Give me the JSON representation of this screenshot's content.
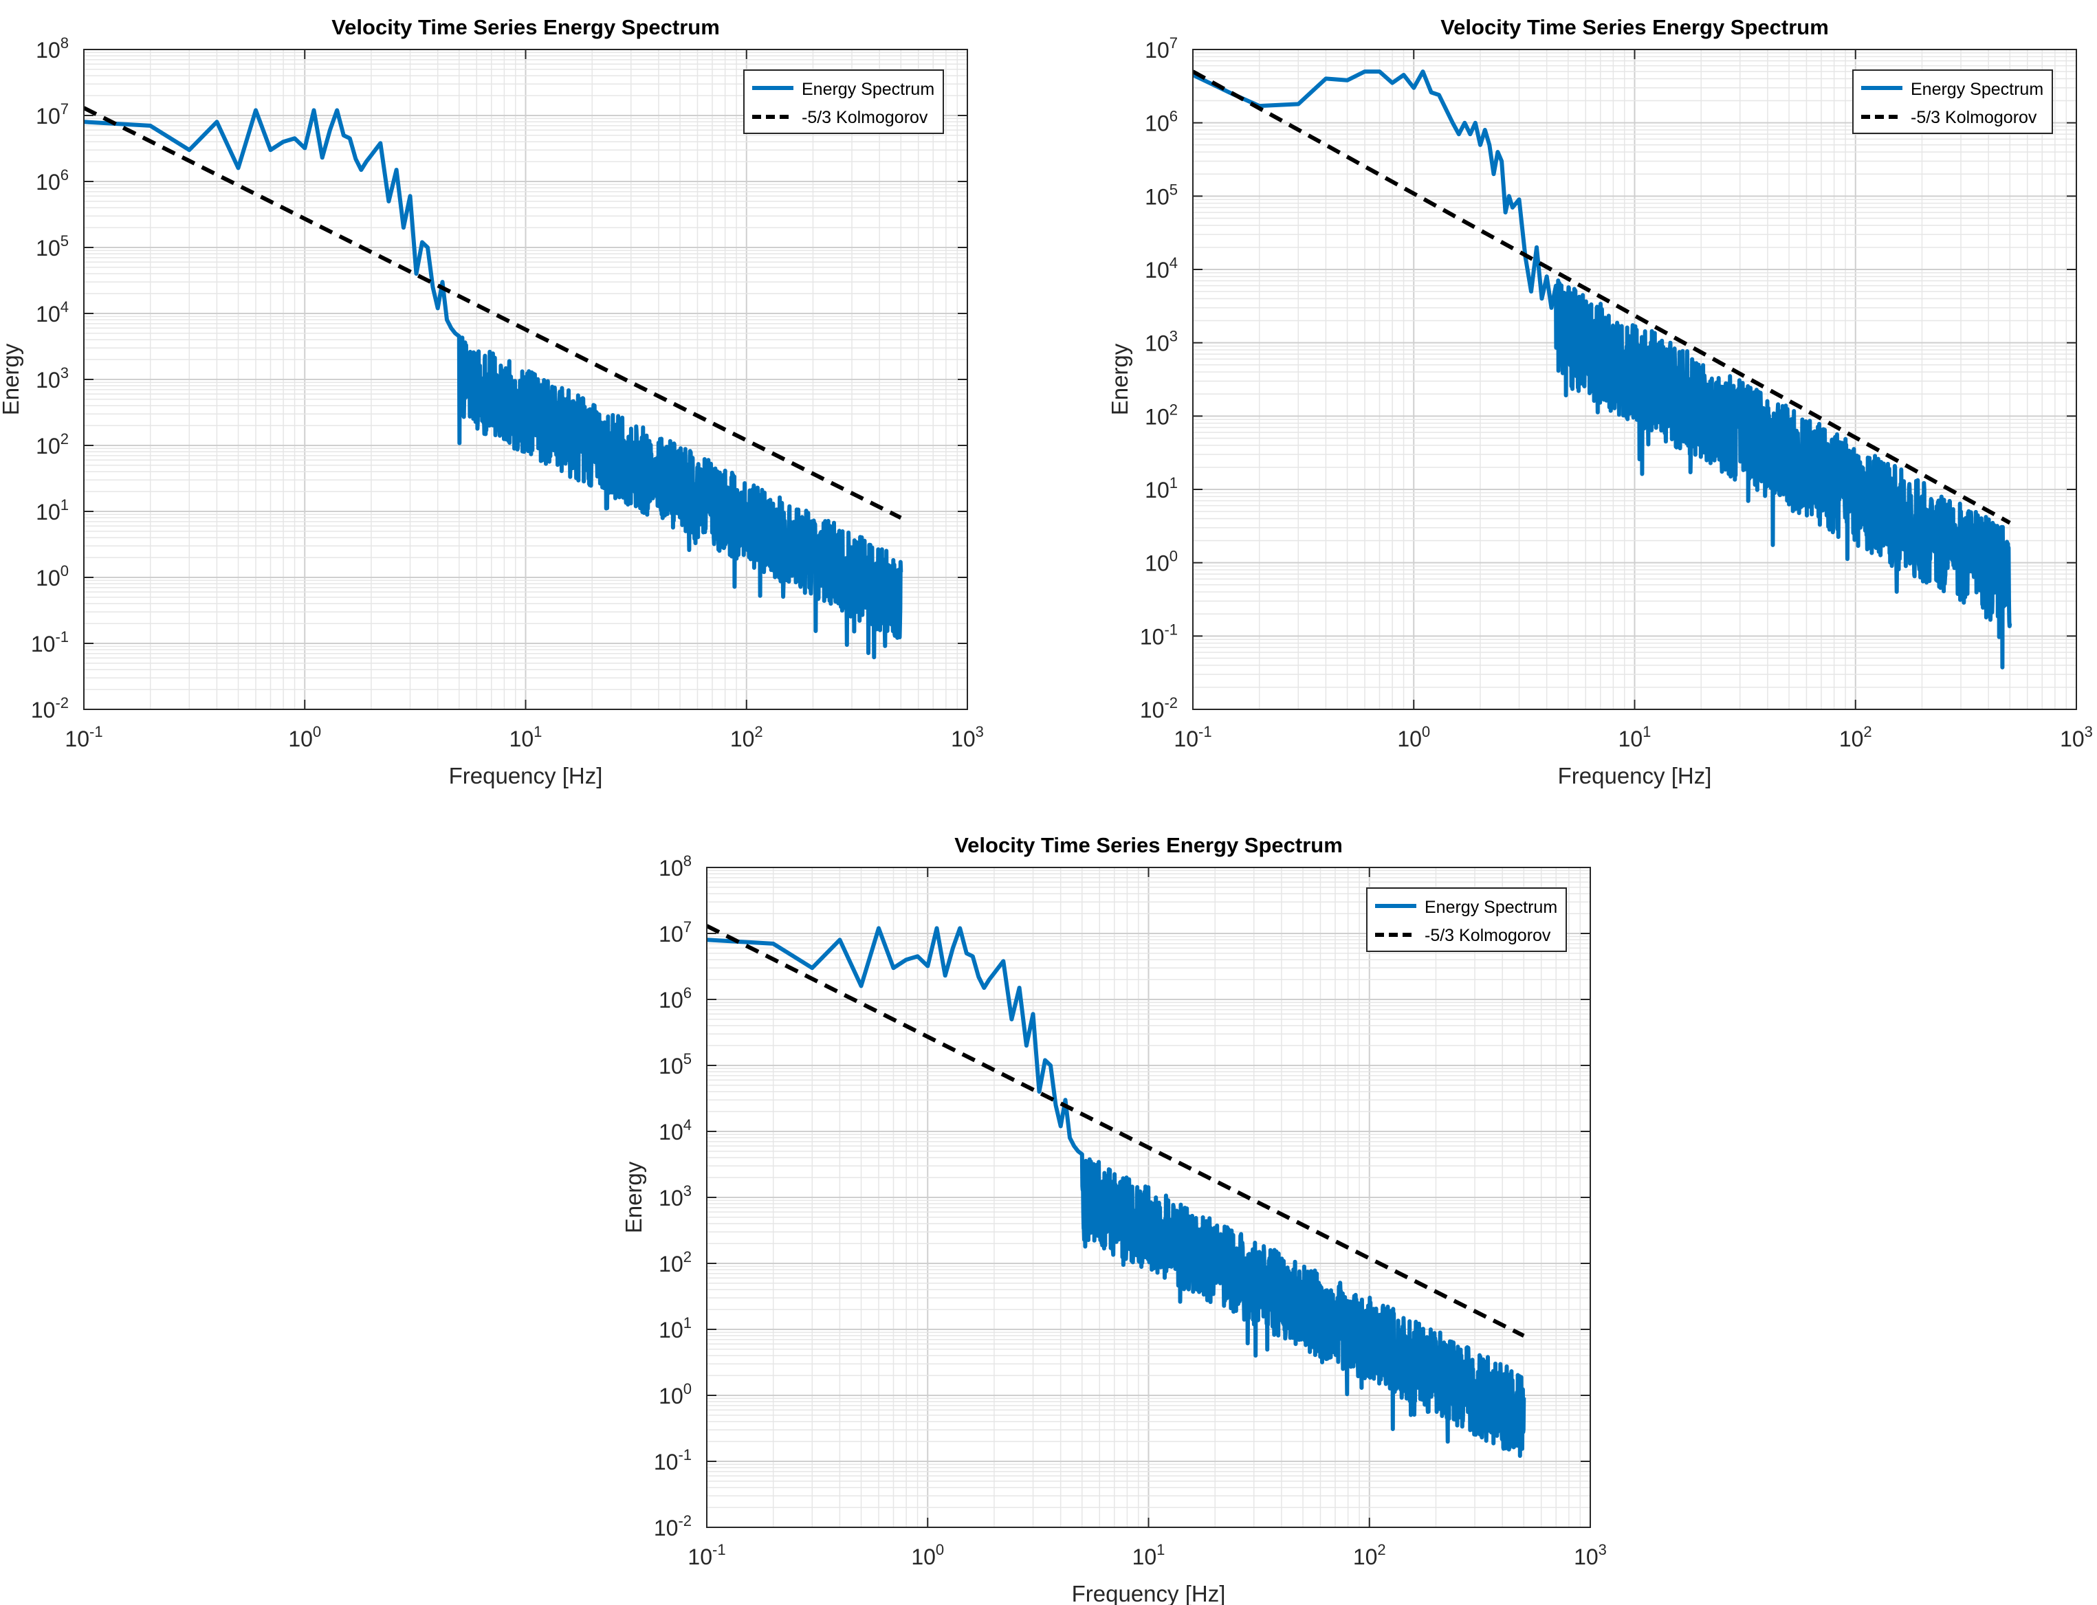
{
  "colors": {
    "spectrum": "#0072BD",
    "kolmogorov": "#000000",
    "grid": "#d9d9d9",
    "axes": "#262626"
  },
  "chart_data": [
    {
      "type": "line",
      "scale": {
        "x": "log",
        "y": "log"
      },
      "title": "Velocity Time Series Energy Spectrum",
      "xlabel": "Frequency [Hz]",
      "ylabel": "Energy",
      "xlim": [
        0.1,
        1000
      ],
      "ylim": [
        0.01,
        100000000
      ],
      "xtick_exponents": [
        -1,
        0,
        1,
        2,
        3
      ],
      "ytick_exponents": [
        -2,
        -1,
        0,
        1,
        2,
        3,
        4,
        5,
        6,
        7,
        8
      ],
      "grid": true,
      "legend": {
        "placement": "top-right",
        "entries": [
          "Energy Spectrum",
          "-5/3 Kolmogorov"
        ]
      },
      "series": [
        {
          "name": "Energy Spectrum",
          "style": "solid",
          "x": [
            0.1,
            0.2,
            0.3,
            0.4,
            0.5,
            0.6,
            0.7,
            0.8,
            0.9,
            1.0,
            1.1,
            1.2,
            1.3,
            1.4,
            1.5,
            1.6,
            1.7,
            1.8,
            1.9,
            2.0,
            2.2,
            2.4,
            2.6,
            2.8,
            3.0,
            3.2,
            3.4,
            3.6,
            3.8,
            4.0,
            4.2,
            4.4,
            4.6,
            4.8,
            5.0
          ],
          "values": [
            8000000,
            7000000,
            3000000,
            8000000,
            1600000,
            12000000,
            3000000,
            4000000,
            4500000,
            3200000,
            12000000,
            2300000,
            6000000,
            12000000,
            5000000,
            4500000,
            2200000,
            1500000,
            2000000,
            2500000,
            3800000,
            500000,
            1500000,
            200000,
            600000,
            40000,
            120000,
            100000,
            25000,
            12000,
            30000,
            8000,
            6000,
            5000,
            4500
          ],
          "noisy_tail": {
            "x_range": [
              5,
              500
            ],
            "log10_ref_at_5Hz": 3.3,
            "slope": -1.67,
            "spread_decades": 1.3
          }
        },
        {
          "name": "-5/3 Kolmogorov",
          "style": "dashed",
          "x": [
            0.1,
            500
          ],
          "values": [
            13000000,
            8
          ]
        }
      ]
    },
    {
      "type": "line",
      "scale": {
        "x": "log",
        "y": "log"
      },
      "title": "Velocity Time Series Energy Spectrum",
      "xlabel": "Frequency [Hz]",
      "ylabel": "Energy",
      "xlim": [
        0.1,
        1000
      ],
      "ylim": [
        0.01,
        10000000
      ],
      "xtick_exponents": [
        -1,
        0,
        1,
        2,
        3
      ],
      "ytick_exponents": [
        -2,
        -1,
        0,
        1,
        2,
        3,
        4,
        5,
        6,
        7
      ],
      "ytick_labels": [
        "10^-2",
        "10^-1",
        "10^0",
        "10^1",
        "10^2",
        "10^3",
        "10^4",
        "10^5",
        "10^6",
        "10^7"
      ],
      "grid": true,
      "legend": {
        "placement": "top-right",
        "entries": [
          "Energy Spectrum",
          "-5/3 Kolmogorov"
        ]
      },
      "series": [
        {
          "name": "Energy Spectrum",
          "style": "solid",
          "x": [
            0.1,
            0.15,
            0.2,
            0.3,
            0.4,
            0.5,
            0.6,
            0.7,
            0.8,
            0.9,
            1.0,
            1.1,
            1.2,
            1.3,
            1.5,
            1.6,
            1.7,
            1.8,
            1.9,
            2.0,
            2.1,
            2.2,
            2.3,
            2.4,
            2.5,
            2.6,
            2.7,
            2.8,
            3.0,
            3.2,
            3.4,
            3.6,
            3.8,
            4.0,
            4.2,
            4.4
          ],
          "values": [
            4500000,
            2500000,
            1700000,
            1800000,
            4000000,
            3800000,
            5000000,
            5000000,
            3500000,
            4500000,
            3000000,
            5000000,
            2600000,
            2400000,
            1000000,
            700000,
            1000000,
            700000,
            1000000,
            500000,
            800000,
            500000,
            200000,
            400000,
            300000,
            60000,
            100000,
            70000,
            90000,
            15000,
            5000,
            20000,
            4000,
            8000,
            3000,
            6000
          ],
          "noisy_tail": {
            "x_range": [
              4.4,
              500
            ],
            "log10_ref_at_5Hz": 3.4,
            "slope": -1.67,
            "spread_decades": 1.4
          }
        },
        {
          "name": "-5/3 Kolmogorov",
          "style": "dashed",
          "x": [
            0.1,
            500
          ],
          "values": [
            5000000,
            3.5
          ]
        }
      ]
    },
    {
      "type": "line",
      "scale": {
        "x": "log",
        "y": "log"
      },
      "title": "Velocity Time Series Energy Spectrum",
      "xlabel": "Frequency [Hz]",
      "ylabel": "Energy",
      "xlim": [
        0.1,
        1000
      ],
      "ylim": [
        0.01,
        100000000
      ],
      "xtick_exponents": [
        -1,
        0,
        1,
        2,
        3
      ],
      "ytick_exponents": [
        -2,
        -1,
        0,
        1,
        2,
        3,
        4,
        5,
        6,
        7,
        8
      ],
      "grid": true,
      "legend": {
        "placement": "top-right",
        "entries": [
          "Energy Spectrum",
          "-5/3 Kolmogorov"
        ]
      },
      "series": [
        {
          "name": "Energy Spectrum",
          "style": "solid",
          "x": [
            0.1,
            0.2,
            0.3,
            0.4,
            0.5,
            0.6,
            0.7,
            0.8,
            0.9,
            1.0,
            1.1,
            1.2,
            1.3,
            1.4,
            1.5,
            1.6,
            1.7,
            1.8,
            1.9,
            2.0,
            2.2,
            2.4,
            2.6,
            2.8,
            3.0,
            3.2,
            3.4,
            3.6,
            3.8,
            4.0,
            4.2,
            4.4,
            4.6,
            4.8,
            5.0
          ],
          "values": [
            8000000,
            7000000,
            3000000,
            8000000,
            1600000,
            12000000,
            3000000,
            4000000,
            4500000,
            3200000,
            12000000,
            2300000,
            6000000,
            12000000,
            5000000,
            4500000,
            2200000,
            1500000,
            2000000,
            2500000,
            3800000,
            500000,
            1500000,
            200000,
            600000,
            40000,
            120000,
            100000,
            25000,
            12000,
            30000,
            8000,
            6000,
            5000,
            4500
          ],
          "noisy_tail": {
            "x_range": [
              5,
              500
            ],
            "log10_ref_at_5Hz": 3.3,
            "slope": -1.67,
            "spread_decades": 1.3
          }
        },
        {
          "name": "-5/3 Kolmogorov",
          "style": "dashed",
          "x": [
            0.1,
            500
          ],
          "values": [
            13000000,
            8
          ]
        }
      ]
    }
  ]
}
